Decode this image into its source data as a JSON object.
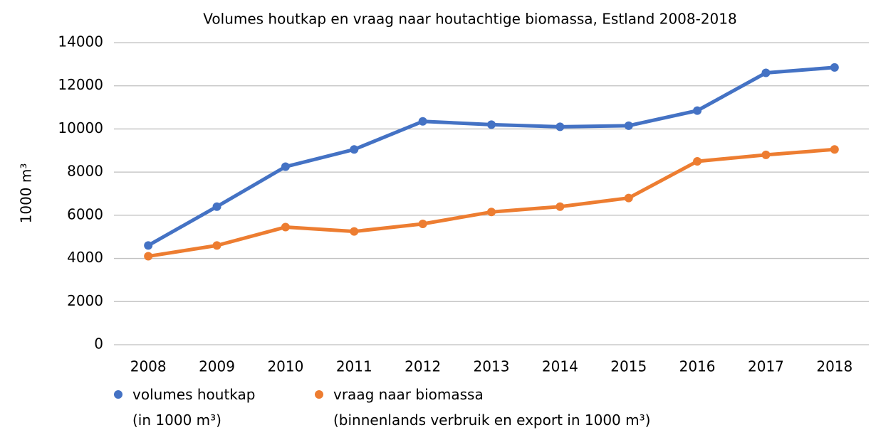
{
  "chart_data": {
    "type": "line",
    "title": "Volumes houtkap en vraag naar houtachtige biomassa, Estland 2008-2018",
    "y_label": "1000 m³",
    "categories": [
      "2008",
      "2009",
      "2010",
      "2011",
      "2012",
      "2013",
      "2014",
      "2015",
      "2016",
      "2017",
      "2018"
    ],
    "series": [
      {
        "name": "volumes houtkap\n(in 1000 m³)",
        "color": "#4472c4",
        "values": [
          4600,
          6400,
          8250,
          9050,
          10350,
          10200,
          10100,
          10150,
          10850,
          12600,
          12850
        ]
      },
      {
        "name": "vraag naar biomassa\n(binnenlands verbruik en export in 1000 m³)",
        "color": "#ed7d31",
        "values": [
          4100,
          4600,
          5450,
          5250,
          5600,
          6150,
          6400,
          6800,
          8500,
          8800,
          9050
        ]
      }
    ],
    "ylim": [
      0,
      14000
    ],
    "yticks": [
      0,
      2000,
      4000,
      6000,
      8000,
      10000,
      12000,
      14000
    ],
    "grid": true
  }
}
